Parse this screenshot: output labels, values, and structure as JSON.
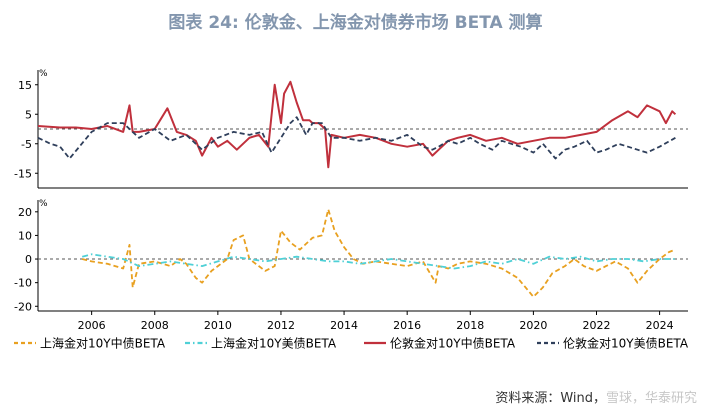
{
  "chart_data": [
    {
      "type": "line",
      "title": "图表 24: 伦敦金、上海金对债券市场 BETA 测算",
      "ylabel": "%",
      "ylim": [
        -20,
        20
      ],
      "yticks": [
        15,
        5,
        -5,
        -15
      ],
      "x_range": [
        2004.3,
        2024.9
      ],
      "reference_line": 0,
      "series": [
        {
          "name": "伦敦金对10Y中债BETA",
          "color": "#c0303c",
          "x": [
            2004.3,
            2005.0,
            2005.5,
            2006.0,
            2006.5,
            2007.0,
            2007.2,
            2007.3,
            2007.5,
            2008.0,
            2008.4,
            2008.7,
            2009.0,
            2009.3,
            2009.5,
            2009.8,
            2010.0,
            2010.3,
            2010.6,
            2011.0,
            2011.3,
            2011.6,
            2011.8,
            2012.0,
            2012.1,
            2012.3,
            2012.5,
            2012.7,
            2012.9,
            2013.0,
            2013.2,
            2013.4,
            2013.5,
            2013.6,
            2014.0,
            2014.5,
            2015.0,
            2015.5,
            2016.0,
            2016.5,
            2016.8,
            2017.0,
            2017.3,
            2017.6,
            2018.0,
            2018.5,
            2019.0,
            2019.5,
            2020.0,
            2020.5,
            2021.0,
            2021.5,
            2022.0,
            2022.5,
            2023.0,
            2023.3,
            2023.6,
            2024.0,
            2024.2,
            2024.4,
            2024.5
          ],
          "values": [
            1,
            0.5,
            0.5,
            0,
            1,
            -1,
            8,
            -1,
            -1,
            0,
            7,
            -1,
            -2,
            -4,
            -9,
            -3,
            -6,
            -4,
            -7,
            -3,
            -2,
            -6,
            15,
            2,
            12,
            16,
            9,
            3,
            3,
            2,
            2,
            0,
            -13,
            -2,
            -3,
            -2,
            -3,
            -5,
            -6,
            -5,
            -9,
            -7,
            -4,
            -3,
            -2,
            -4,
            -3,
            -5,
            -4,
            -3,
            -3,
            -2,
            -1,
            3,
            6,
            4,
            8,
            6,
            2,
            6,
            5
          ]
        },
        {
          "name": "伦敦金对10Y美债BETA",
          "color": "#2f3f5b",
          "x": [
            2004.3,
            2004.7,
            2005.0,
            2005.3,
            2006.0,
            2006.5,
            2007.0,
            2007.5,
            2008.0,
            2008.5,
            2009.0,
            2009.5,
            2010.0,
            2010.5,
            2011.0,
            2011.4,
            2011.7,
            2012.0,
            2012.3,
            2012.5,
            2012.8,
            2013.0,
            2013.3,
            2013.6,
            2014.0,
            2014.5,
            2015.0,
            2015.5,
            2016.0,
            2016.5,
            2016.8,
            2017.0,
            2017.3,
            2017.6,
            2018.0,
            2018.3,
            2018.7,
            2019.0,
            2019.3,
            2019.6,
            2020.0,
            2020.3,
            2020.7,
            2021.0,
            2021.3,
            2021.7,
            2022.0,
            2022.3,
            2022.7,
            2023.0,
            2023.3,
            2023.6,
            2024.0,
            2024.5
          ],
          "values": [
            -3,
            -5,
            -6,
            -10,
            -1,
            2,
            2,
            -3,
            0,
            -4,
            -2,
            -7,
            -3,
            -1,
            -2,
            -1,
            -8,
            -3,
            2,
            4,
            -2,
            2,
            2,
            -3,
            -3,
            -4,
            -3,
            -4,
            -2,
            -6,
            -7,
            -6,
            -4,
            -5,
            -3,
            -5,
            -7,
            -4,
            -5,
            -6,
            -8,
            -5,
            -10,
            -7,
            -6,
            -4,
            -8,
            -7,
            -5,
            -6,
            -7,
            -8,
            -6,
            -3
          ]
        }
      ]
    },
    {
      "type": "line",
      "ylabel": "%",
      "ylim": [
        -22,
        25
      ],
      "yticks": [
        20,
        10,
        0,
        -10,
        -20
      ],
      "xticks": [
        "2006",
        "2008",
        "2010",
        "2012",
        "2014",
        "2016",
        "2018",
        "2020",
        "2022",
        "2024"
      ],
      "x_range": [
        2004.3,
        2024.9
      ],
      "reference_line": 0,
      "series": [
        {
          "name": "上海金对10Y中债BETA",
          "color": "#e8a020",
          "x": [
            2005.7,
            2006.0,
            2006.5,
            2007.0,
            2007.2,
            2007.3,
            2007.5,
            2008.0,
            2008.5,
            2008.8,
            2009.0,
            2009.3,
            2009.5,
            2009.8,
            2010.0,
            2010.3,
            2010.5,
            2010.8,
            2011.0,
            2011.5,
            2011.8,
            2012.0,
            2012.3,
            2012.6,
            2013.0,
            2013.3,
            2013.5,
            2013.7,
            2014.0,
            2014.3,
            2014.6,
            2015.0,
            2015.5,
            2016.0,
            2016.5,
            2016.9,
            2017.0,
            2017.3,
            2017.6,
            2018.0,
            2018.5,
            2019.0,
            2019.5,
            2020.0,
            2020.3,
            2020.6,
            2021.0,
            2021.3,
            2021.6,
            2022.0,
            2022.3,
            2022.6,
            2023.0,
            2023.3,
            2023.6,
            2024.0,
            2024.3,
            2024.5
          ],
          "values": [
            0,
            -1,
            -2,
            -4,
            6,
            -12,
            -2,
            -1,
            -3,
            0,
            -2,
            -8,
            -10,
            -5,
            -3,
            0,
            8,
            10,
            0,
            -5,
            -3,
            12,
            7,
            4,
            9,
            10,
            21,
            12,
            5,
            0,
            -2,
            -1,
            -2,
            -3,
            -1,
            -10,
            -3,
            -4,
            -2,
            -1,
            -2,
            -4,
            -8,
            -16,
            -12,
            -6,
            -3,
            0,
            -3,
            -5,
            -3,
            -1,
            -4,
            -10,
            -5,
            0,
            3,
            4
          ]
        },
        {
          "name": "上海金对10Y美债BETA",
          "color": "#4fd0d6",
          "x": [
            2005.7,
            2006.0,
            2006.5,
            2007.0,
            2007.5,
            2008.0,
            2008.5,
            2009.0,
            2009.5,
            2010.0,
            2010.5,
            2011.0,
            2011.5,
            2012.0,
            2012.5,
            2013.0,
            2013.5,
            2014.0,
            2014.5,
            2015.0,
            2015.5,
            2016.0,
            2016.5,
            2017.0,
            2017.5,
            2018.0,
            2018.5,
            2019.0,
            2019.5,
            2020.0,
            2020.5,
            2021.0,
            2021.5,
            2022.0,
            2022.5,
            2023.0,
            2023.5,
            2024.0,
            2024.5
          ],
          "values": [
            1,
            2,
            1,
            0,
            -3,
            -2,
            -1,
            -2,
            -3,
            -1,
            1,
            0,
            -1,
            0,
            1,
            0,
            -1,
            -1,
            -2,
            -1,
            0,
            -1,
            -2,
            -3,
            -4,
            -3,
            -1,
            -2,
            0,
            -2,
            1,
            0,
            1,
            -1,
            0,
            0,
            -1,
            0,
            0
          ]
        }
      ]
    }
  ],
  "legend": [
    {
      "label": "上海金对10Y中债BETA",
      "color": "#e8a020",
      "style": "dash"
    },
    {
      "label": "上海金对10Y美债BETA",
      "color": "#4fd0d6",
      "style": "dashdot"
    },
    {
      "label": "伦敦金对10Y中债BETA",
      "color": "#c0303c",
      "style": "solid"
    },
    {
      "label": "伦敦金对10Y美债BETA",
      "color": "#2f3f5b",
      "style": "dash"
    }
  ],
  "source": "资料来源：Wind，",
  "watermark": "雪球，华泰研究"
}
